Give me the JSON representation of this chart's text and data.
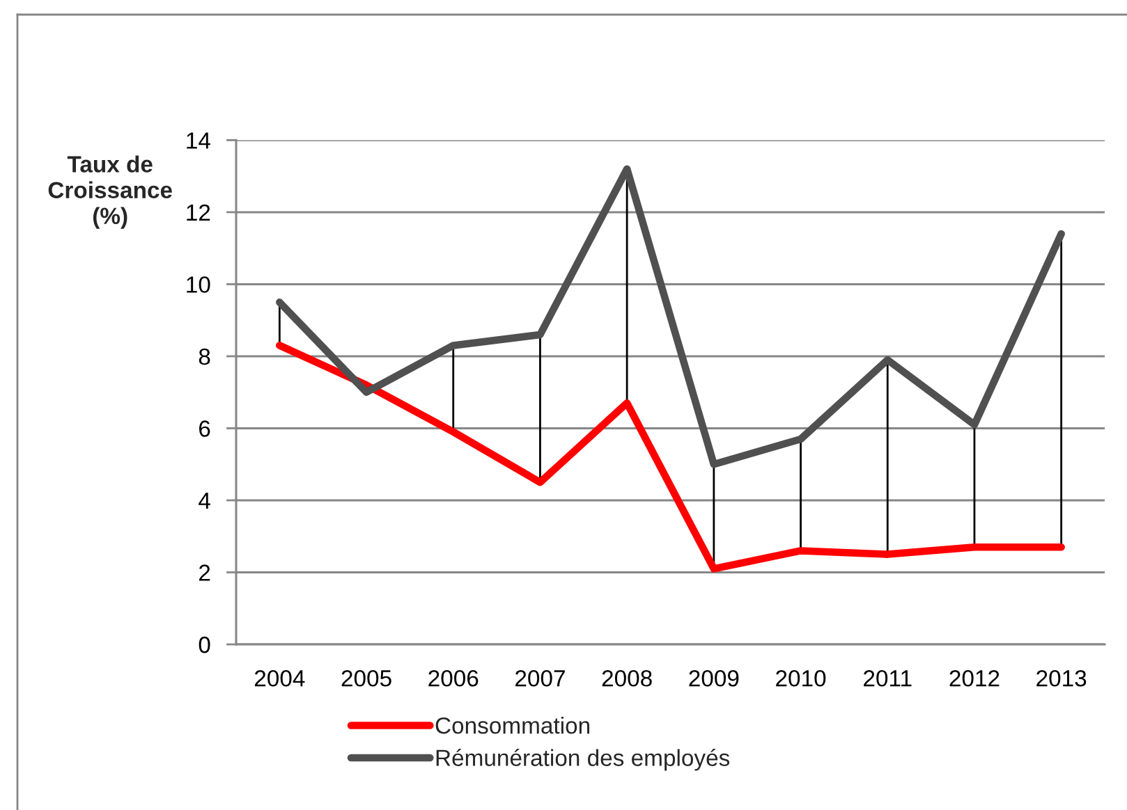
{
  "chart_data": {
    "type": "line",
    "ylabel": "Taux de\nCroissance\n(%)",
    "categories": [
      "2004",
      "2005",
      "2006",
      "2007",
      "2008",
      "2009",
      "2010",
      "2011",
      "2012",
      "2013"
    ],
    "series": [
      {
        "name": "Consommation",
        "color": "#ff0000",
        "values": [
          8.3,
          7.2,
          5.9,
          4.5,
          6.7,
          2.1,
          2.6,
          2.5,
          2.7,
          2.7
        ],
        "errors": [
          [
            8.3,
            9.5
          ],
          [
            7.0,
            7.2
          ],
          [
            5.9,
            8.3
          ],
          [
            4.5,
            8.6
          ],
          [
            6.7,
            13.2
          ],
          [
            2.1,
            5.0
          ],
          [
            2.6,
            5.7
          ],
          [
            2.5,
            7.9
          ],
          [
            2.7,
            6.1
          ],
          [
            2.7,
            11.4
          ]
        ]
      },
      {
        "name": "Rémunération des employés",
        "color": "#505050",
        "values": [
          9.5,
          7.0,
          8.3,
          8.6,
          13.2,
          5.0,
          5.7,
          7.9,
          6.1,
          11.4
        ]
      }
    ],
    "ylim": [
      0,
      14
    ],
    "yticks": [
      0,
      2,
      4,
      6,
      8,
      10,
      12,
      14
    ],
    "grid": "y",
    "legend": "bottom"
  }
}
